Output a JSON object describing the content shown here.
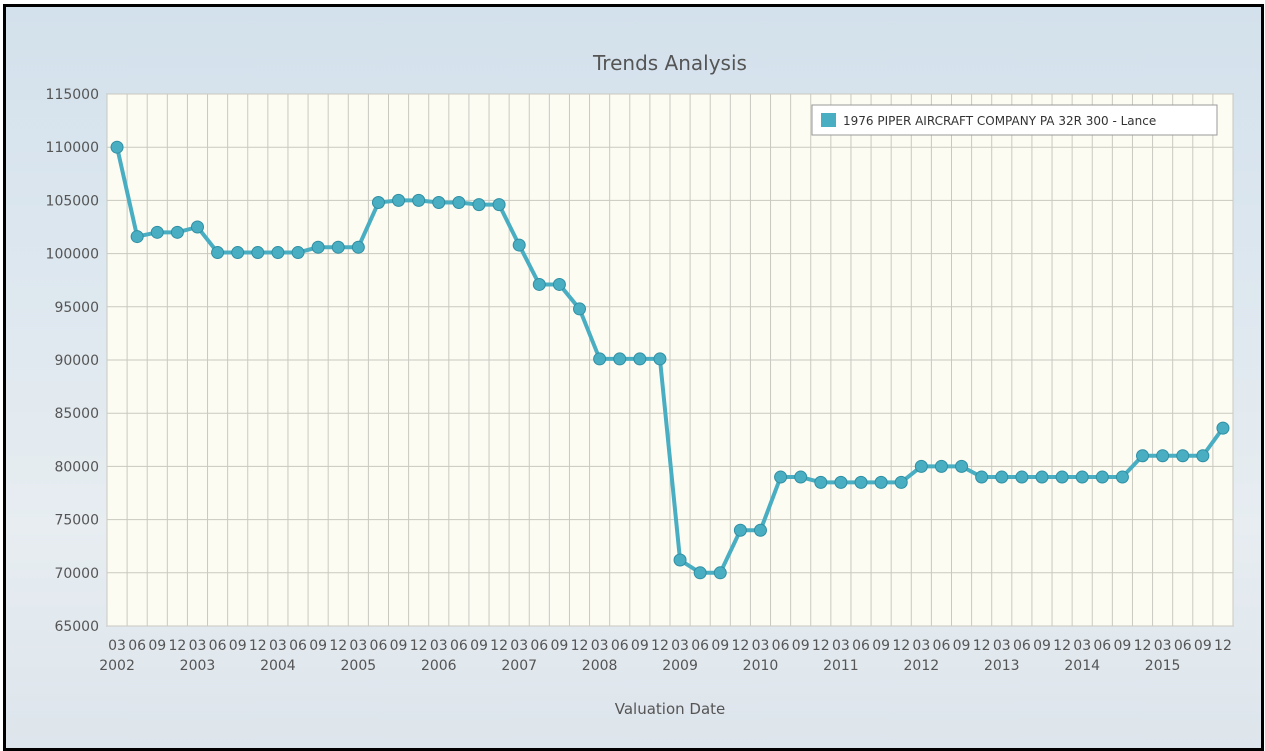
{
  "chart_data": {
    "type": "line",
    "title": "Trends Analysis",
    "xlabel": "Valuation Date",
    "ylabel": "",
    "ylim": [
      65000,
      115000
    ],
    "yticks": [
      "115000",
      "110000",
      "105000",
      "100000",
      "95000",
      "90000",
      "85000",
      "80000",
      "75000",
      "70000",
      "65000"
    ],
    "grid": true,
    "legend_position": "top-right",
    "colors": {
      "series": "#4aaec2",
      "series_dark": "#2f8fa3",
      "plot_bg": "#fdfcf3",
      "grid": "#c9c9c0"
    },
    "month_ticks": [
      "03",
      "06",
      "09",
      "12",
      "03",
      "06",
      "09",
      "12",
      "03",
      "06",
      "09",
      "12",
      "03",
      "06",
      "09",
      "12",
      "03",
      "06",
      "09",
      "12",
      "03",
      "06",
      "09",
      "12",
      "03",
      "06",
      "09",
      "12",
      "03",
      "06",
      "09",
      "12",
      "03",
      "06",
      "09",
      "12",
      "03",
      "06",
      "09",
      "12",
      "03",
      "06",
      "09",
      "12",
      "03",
      "06",
      "09",
      "12",
      "03",
      "06",
      "09",
      "12",
      "03",
      "06",
      "09",
      "12"
    ],
    "year_ticks": [
      {
        "label": "2002",
        "x": "2002-03"
      },
      {
        "label": "2003",
        "x": "2003-03"
      },
      {
        "label": "2004",
        "x": "2004-03"
      },
      {
        "label": "2005",
        "x": "2005-03"
      },
      {
        "label": "2006",
        "x": "2006-03"
      },
      {
        "label": "2007",
        "x": "2007-03"
      },
      {
        "label": "2008",
        "x": "2008-03"
      },
      {
        "label": "2009",
        "x": "2009-03"
      },
      {
        "label": "2010",
        "x": "2010-03"
      },
      {
        "label": "2011",
        "x": "2011-03"
      },
      {
        "label": "2012",
        "x": "2012-03"
      },
      {
        "label": "2013",
        "x": "2013-03"
      },
      {
        "label": "2014",
        "x": "2014-03"
      },
      {
        "label": "2015",
        "x": "2015-03"
      }
    ],
    "x": [
      "2002-03",
      "2002-06",
      "2002-09",
      "2002-12",
      "2003-03",
      "2003-06",
      "2003-09",
      "2003-12",
      "2004-03",
      "2004-06",
      "2004-09",
      "2004-12",
      "2005-03",
      "2005-06",
      "2005-09",
      "2005-12",
      "2006-03",
      "2006-06",
      "2006-09",
      "2006-12",
      "2007-03",
      "2007-06",
      "2007-09",
      "2007-12",
      "2008-03",
      "2008-06",
      "2008-09",
      "2008-12",
      "2009-03",
      "2009-06",
      "2009-09",
      "2009-12",
      "2010-03",
      "2010-06",
      "2010-09",
      "2010-12",
      "2011-03",
      "2011-06",
      "2011-09",
      "2011-12",
      "2012-03",
      "2012-06",
      "2012-09",
      "2012-12",
      "2013-03",
      "2013-06",
      "2013-09",
      "2013-12",
      "2014-03",
      "2014-06",
      "2014-09",
      "2014-12",
      "2015-03",
      "2015-06",
      "2015-09",
      "2015-12"
    ],
    "series": [
      {
        "name": "1976 PIPER AIRCRAFT COMPANY PA 32R 300 - Lance",
        "values": [
          110000,
          101600,
          102000,
          102000,
          102500,
          100100,
          100100,
          100100,
          100100,
          100100,
          100600,
          100600,
          100600,
          104800,
          105000,
          105000,
          104800,
          104800,
          104600,
          104600,
          100800,
          97100,
          97100,
          94800,
          90100,
          90100,
          90100,
          90100,
          71200,
          70000,
          70000,
          74000,
          74000,
          79000,
          79000,
          78500,
          78500,
          78500,
          78500,
          78500,
          80000,
          80000,
          80000,
          79000,
          79000,
          79000,
          79000,
          79000,
          79000,
          79000,
          79000,
          81000,
          81000,
          81000,
          81000,
          83600
        ]
      }
    ]
  }
}
